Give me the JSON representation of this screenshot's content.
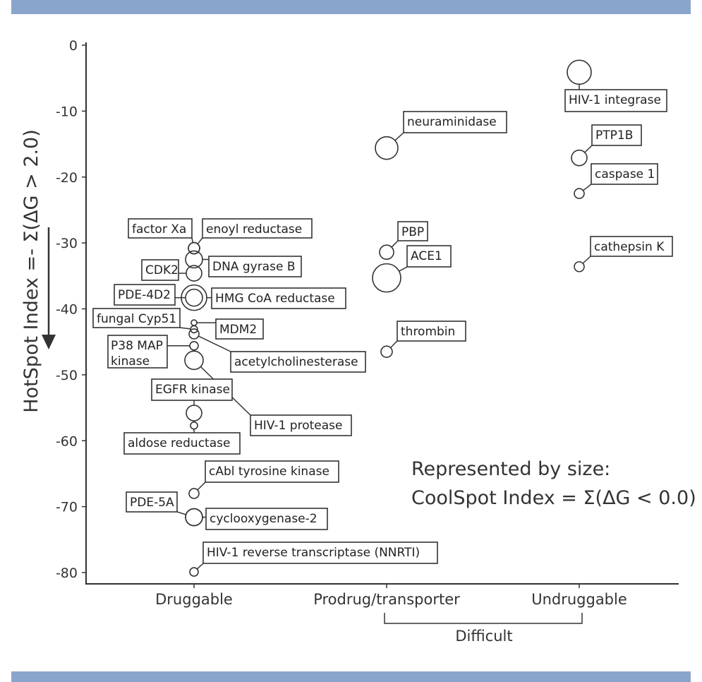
{
  "colors": {
    "band": "#8aa5cb",
    "ink": "#333333"
  },
  "chart_data": {
    "type": "scatter",
    "ylabel": "HotSpot Index =- Σ(ΔG > 2.0)",
    "ylim": [
      -80,
      0
    ],
    "yticks": [
      "0",
      "-10",
      "-20",
      "-30",
      "-40",
      "-50",
      "-60",
      "-70",
      "-80"
    ],
    "categories": [
      "Druggable",
      "Prodrug/transporter",
      "Undruggable"
    ],
    "bracket_label": "Difficult",
    "size_note": [
      "Represented by size:",
      "CoolSpot Index = Σ(ΔG < 0.0)"
    ],
    "grid": false,
    "points": [
      {
        "label": "factor Xa",
        "category": "Druggable",
        "y": -30.8,
        "size": 8
      },
      {
        "label": "enoyl reductase",
        "category": "Druggable",
        "y": -30.8,
        "size": 8
      },
      {
        "label": "DNA gyrase B",
        "category": "Druggable",
        "y": -32.5,
        "size": 12
      },
      {
        "label": "CDK2",
        "category": "Druggable",
        "y": -34.6,
        "size": 11
      },
      {
        "label": "PDE-4D2",
        "category": "Druggable",
        "y": -38.3,
        "size": 12
      },
      {
        "label": "HMG CoA reductase",
        "category": "Druggable",
        "y": -38.3,
        "size": 18
      },
      {
        "label": "fungal Cyp51",
        "category": "Druggable",
        "y": -43.1,
        "size": 5
      },
      {
        "label": "MDM2",
        "category": "Druggable",
        "y": -42.1,
        "size": 4
      },
      {
        "label": "P38 MAP kinase",
        "category": "Druggable",
        "y": -45.6,
        "size": 6
      },
      {
        "label": "acetylcholinesterase",
        "category": "Druggable",
        "y": -43.8,
        "size": 7
      },
      {
        "label": "EGFR kinase",
        "category": "Druggable",
        "y": -55.8,
        "size": 11
      },
      {
        "label": "HIV-1 protease",
        "category": "Druggable",
        "y": -47.8,
        "size": 13
      },
      {
        "label": "aldose reductase",
        "category": "Druggable",
        "y": -57.7,
        "size": 5
      },
      {
        "label": "cAbl tyrosine kinase",
        "category": "Druggable",
        "y": -68.0,
        "size": 7
      },
      {
        "label": "PDE-5A",
        "category": "Druggable",
        "y": -71.6,
        "size": 12
      },
      {
        "label": "cyclooxygenase-2",
        "category": "Druggable",
        "y": -71.6,
        "size": 12
      },
      {
        "label": "HIV-1 reverse transcriptase (NNRTI)",
        "category": "Druggable",
        "y": -79.9,
        "size": 6
      },
      {
        "label": "neuraminidase",
        "category": "Prodrug/transporter",
        "y": -15.6,
        "size": 16
      },
      {
        "label": "PBP",
        "category": "Prodrug/transporter",
        "y": -31.4,
        "size": 10
      },
      {
        "label": "ACE1",
        "category": "Prodrug/transporter",
        "y": -35.3,
        "size": 20
      },
      {
        "label": "thrombin",
        "category": "Prodrug/transporter",
        "y": -46.5,
        "size": 8
      },
      {
        "label": "HIV-1 integrase",
        "category": "Undruggable",
        "y": -4.1,
        "size": 17
      },
      {
        "label": "PTP1B",
        "category": "Undruggable",
        "y": -17.1,
        "size": 11
      },
      {
        "label": "caspase 1",
        "category": "Undruggable",
        "y": -22.5,
        "size": 7
      },
      {
        "label": "cathepsin K",
        "category": "Undruggable",
        "y": -33.6,
        "size": 7
      }
    ]
  }
}
